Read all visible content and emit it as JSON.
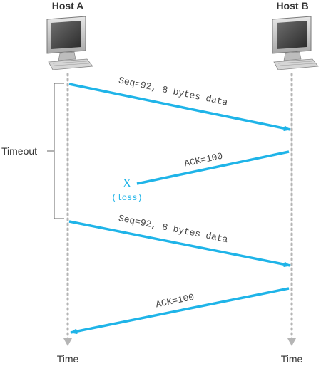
{
  "hosts": {
    "a": {
      "label": "Host A"
    },
    "b": {
      "label": "Host B"
    }
  },
  "timeline": {
    "time_label_a": "Time",
    "time_label_b": "Time",
    "timeout_label": "Timeout"
  },
  "messages": [
    {
      "text": "Seq=92, 8 bytes data"
    },
    {
      "text": "ACK=100"
    },
    {
      "text": "Seq=92, 8 bytes data"
    },
    {
      "text": "ACK=100"
    }
  ],
  "loss": {
    "mark": "X",
    "label": "(loss)"
  },
  "colors": {
    "arrow": "#1fb4e8",
    "timeline": "#b5b5b5",
    "loss": "#1fb4e8",
    "text": "#333333",
    "bracket": "#666666"
  },
  "icons": {
    "host": "desktop-computer-icon"
  }
}
